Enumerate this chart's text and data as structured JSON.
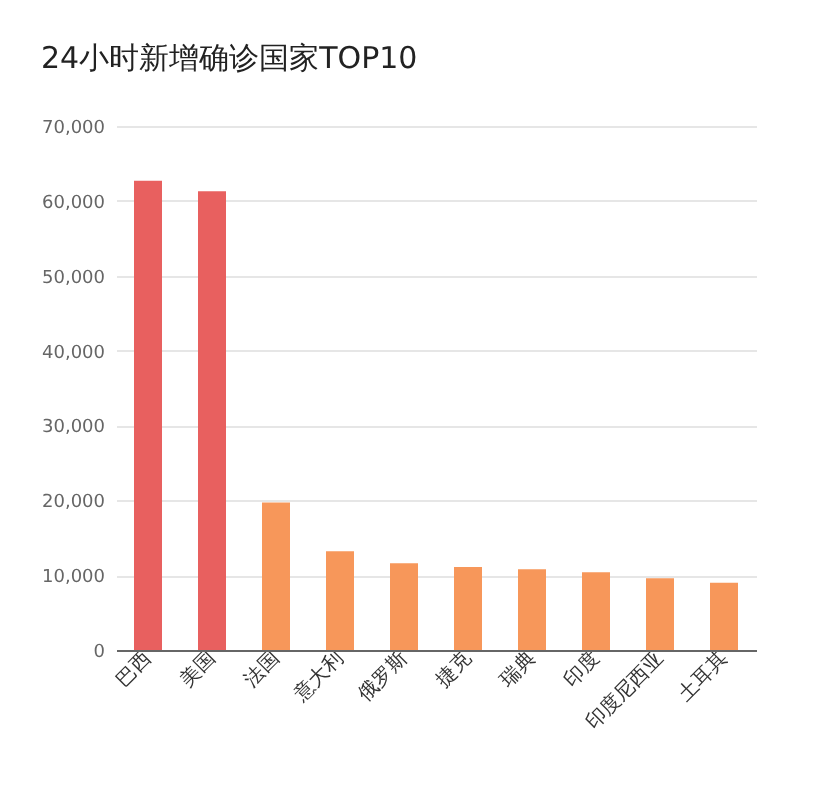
{
  "chart_data": {
    "type": "bar",
    "title": "24小时新增确诊国家TOP10",
    "categories": [
      "巴西",
      "美国",
      "法国",
      "意大利",
      "俄罗斯",
      "捷克",
      "瑞典",
      "印度",
      "印度尼西亚",
      "土耳其"
    ],
    "values": [
      62700,
      61300,
      19700,
      13200,
      11600,
      11100,
      10800,
      10400,
      9600,
      9000
    ],
    "colors": [
      "#e8605f",
      "#e8605f",
      "#f7975a",
      "#f7975a",
      "#f7975a",
      "#f7975a",
      "#f7975a",
      "#f7975a",
      "#f7975a",
      "#f7975a"
    ],
    "ylim": [
      0,
      70000
    ],
    "yticks": [
      0,
      {
        "value": 10000,
        "label": "10,000"
      },
      {
        "value": 20000,
        "label": "20,000"
      },
      {
        "value": 30000,
        "label": "30,000"
      },
      {
        "value": 40000,
        "label": "40,000"
      },
      {
        "value": 50000,
        "label": "50,000"
      },
      {
        "value": 60000,
        "label": "60,000"
      },
      {
        "value": 70000,
        "label": "70,000"
      }
    ],
    "grid": "y"
  }
}
